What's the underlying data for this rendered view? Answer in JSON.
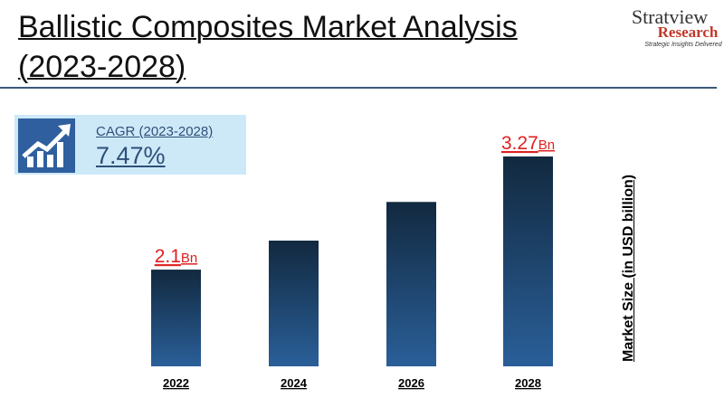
{
  "header": {
    "title": "Ballistic Composites Market Analysis (2023-2028)"
  },
  "logo": {
    "brand": "Stratview",
    "sub": "Research",
    "tagline": "Strategic Insights Delivered"
  },
  "cagr": {
    "label": "CAGR (2023-2028)",
    "value": "7.47%",
    "icon": "growth-chart-icon"
  },
  "chart_data": {
    "type": "bar",
    "categories": [
      "2022",
      "2024",
      "2026",
      "2028"
    ],
    "values": [
      2.1,
      2.4,
      2.8,
      3.27
    ],
    "data_labels": [
      {
        "index": 0,
        "value": "2.1",
        "unit": "Bn"
      },
      {
        "index": 3,
        "value": "3.27",
        "unit": "Bn"
      }
    ],
    "ylabel": "Market Size (in USD billion)",
    "ylim": [
      1.1,
      3.5
    ],
    "grid": false,
    "colors": {
      "bar_top": "#12293f",
      "bar_bottom": "#2a5f99",
      "label": "#e02020"
    }
  }
}
